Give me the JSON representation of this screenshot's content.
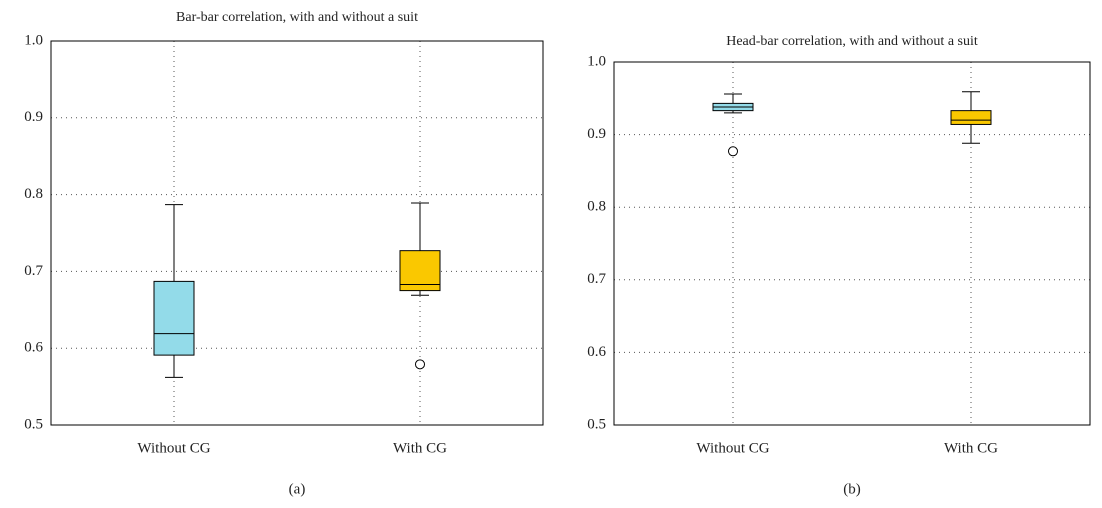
{
  "chart_data": [
    {
      "type": "box",
      "title": "Bar-bar correlation, with and without a suit",
      "caption": "(a)",
      "categories": [
        "Without CG",
        "With CG"
      ],
      "colors": [
        "#93dbe9",
        "#fac800"
      ],
      "boxes": [
        {
          "min": 0.562,
          "q1": 0.591,
          "median": 0.619,
          "q3": 0.687,
          "max": 0.787,
          "outliers": []
        },
        {
          "min": 0.669,
          "q1": 0.675,
          "median": 0.683,
          "q3": 0.727,
          "max": 0.789,
          "outliers": [
            0.579
          ]
        }
      ],
      "ylim": [
        0.5,
        1.0
      ],
      "yticks": [
        0.5,
        0.6,
        0.7,
        0.8,
        0.9,
        {
          "value": 1.0,
          "label": "1.0"
        }
      ],
      "grid": true
    },
    {
      "type": "box",
      "title": "Head-bar correlation, with and without a suit",
      "caption": "(b)",
      "categories": [
        "Without CG",
        "With CG"
      ],
      "colors": [
        "#93dbe9",
        "#fac800"
      ],
      "boxes": [
        {
          "min": 0.93,
          "q1": 0.933,
          "median": 0.938,
          "q3": 0.943,
          "max": 0.956,
          "outliers": [
            0.877
          ]
        },
        {
          "min": 0.888,
          "q1": 0.914,
          "median": 0.92,
          "q3": 0.933,
          "max": 0.959,
          "outliers": []
        }
      ],
      "ylim": [
        0.5,
        1.0
      ],
      "yticks": [
        0.5,
        0.6,
        0.7,
        0.8,
        0.9,
        {
          "value": 1.0,
          "label": "1.0"
        }
      ],
      "grid": true
    }
  ]
}
